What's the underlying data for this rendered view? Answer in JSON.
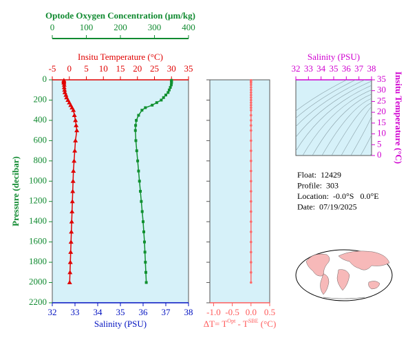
{
  "chart_data": [
    {
      "type": "profile",
      "y": [
        5,
        10,
        20,
        30,
        50,
        75,
        100,
        125,
        150,
        175,
        200,
        225,
        250,
        275,
        300,
        350,
        400,
        450,
        500,
        600,
        700,
        800,
        900,
        1000,
        1100,
        1200,
        1300,
        1400,
        1500,
        1600,
        1700,
        1800,
        1900,
        2000
      ],
      "ylim": [
        0,
        2200
      ],
      "y_reversed": true,
      "yticks": [
        0,
        200,
        400,
        600,
        800,
        1000,
        1200,
        1400,
        1600,
        1800,
        2000,
        2200
      ],
      "y_label": "Pressure (decibar)",
      "y_color": "#108a30",
      "xlim": [
        32,
        38
      ],
      "xticks": [
        32,
        33,
        34,
        35,
        36,
        37,
        38
      ],
      "x_label": "Salinity (PSU)",
      "x_color": "#0010c0",
      "x2lim": [
        -5,
        35
      ],
      "x2ticks": [
        -5,
        0,
        5,
        10,
        15,
        20,
        25,
        30,
        35
      ],
      "x2_label": "Insitu Temperature (°C)",
      "x2_color": "#e00000",
      "x3lim": [
        0,
        400
      ],
      "x3ticks": [
        0,
        100,
        200,
        300,
        400
      ],
      "x3_label": "Optode Oxygen Concentration (µm/kg)",
      "x3_color": "#108a30",
      "series": [
        {
          "color": "#e00000",
          "marker": "triangle",
          "axis": "x2",
          "values": [
            -1.6,
            -1.6,
            -1.6,
            -1.6,
            -1.5,
            -1.5,
            -1.4,
            -1.3,
            -1.0,
            -0.8,
            -0.4,
            0.0,
            0.4,
            0.8,
            1.2,
            1.5,
            1.8,
            2.0,
            2.2,
            1.8,
            1.6,
            1.4,
            1.2,
            1.1,
            1.0,
            0.9,
            0.8,
            0.7,
            0.6,
            0.5,
            0.4,
            0.3,
            0.2,
            0.1
          ]
        },
        {
          "color": "#109030",
          "marker": "square",
          "axis": "x",
          "values": [
            37.25,
            37.25,
            37.25,
            37.25,
            37.24,
            37.2,
            37.15,
            37.1,
            37.0,
            36.9,
            36.8,
            36.6,
            36.4,
            36.1,
            35.95,
            35.8,
            35.7,
            35.67,
            35.66,
            35.68,
            35.72,
            35.76,
            35.8,
            35.84,
            35.88,
            35.92,
            35.96,
            36.0,
            36.03,
            36.06,
            36.08,
            36.1,
            36.12,
            36.14
          ]
        }
      ]
    },
    {
      "type": "profile",
      "y": [
        5,
        10,
        20,
        30,
        50,
        75,
        100,
        125,
        150,
        175,
        200,
        225,
        250,
        275,
        300,
        350,
        400,
        450,
        500,
        600,
        700,
        800,
        900,
        1000,
        1100,
        1200,
        1300,
        1400,
        1500,
        1600,
        1700,
        1800,
        1900,
        2000
      ],
      "ylim": [
        0,
        2200
      ],
      "y_reversed": true,
      "ytick_labels": false,
      "yticks": [
        0,
        200,
        400,
        600,
        800,
        1000,
        1200,
        1400,
        1600,
        1800,
        2000,
        2200
      ],
      "xlim": [
        -1.1,
        0.5
      ],
      "x_color": "#ff5a5a",
      "xticks": [
        {
          "value": -1,
          "label": "-1.0"
        },
        -0.5,
        {
          "value": 0,
          "label": "0.0"
        },
        0.5
      ],
      "x_label": [
        "ΔT= T",
        "Opt",
        " - T",
        "SBE",
        " (°C)"
      ],
      "series": [
        {
          "color": "#ff6a6a",
          "marker": "dot",
          "axis": "x",
          "values": [
            0.0,
            0.0,
            0.0,
            0.0,
            0.0,
            0.0,
            0.0,
            0.0,
            0.0,
            0.0,
            0.0,
            0.0,
            0.0,
            0.0,
            0.0,
            0.0,
            0.0,
            0.0,
            0.0,
            0.0,
            0.0,
            0.0,
            0.0,
            0.0,
            0.0,
            0.0,
            0.0,
            0.0,
            0.0,
            0.0,
            0.0,
            0.0,
            0.0,
            0.0
          ]
        }
      ]
    },
    {
      "type": "ts",
      "xlim": [
        32,
        38
      ],
      "xticks": [
        32,
        33,
        34,
        35,
        36,
        37,
        38
      ],
      "x_label": "Salinity (PSU)",
      "x_color": "#d000d0",
      "ylim": [
        0,
        35
      ],
      "yticks": [
        0,
        5,
        10,
        15,
        20,
        25,
        30,
        35
      ],
      "y_label": "Insitu Temperature (°C)",
      "y_color": "#d000d0"
    }
  ],
  "info": [
    "Float:  12429",
    "Profile:  303",
    "Location:  -0.0°S   0.0°E",
    "Date:  07/19/2025"
  ]
}
